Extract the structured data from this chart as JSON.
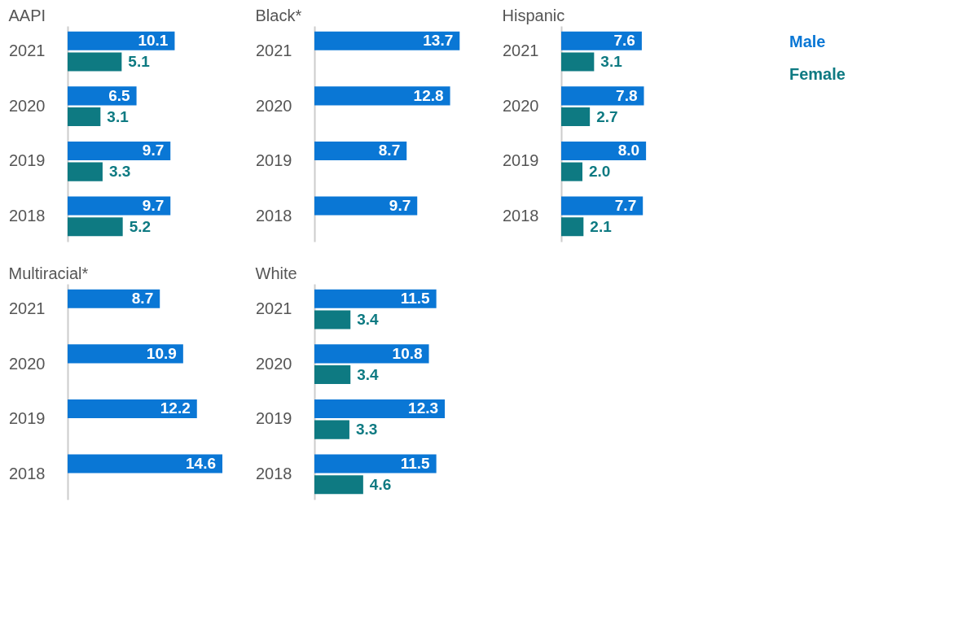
{
  "chart_data": [
    {
      "type": "bar",
      "orientation": "horizontal",
      "title": "AAPI",
      "categories": [
        "2021",
        "2020",
        "2019",
        "2018"
      ],
      "data_labels": true,
      "legend": false,
      "series": [
        {
          "color": "#0a77d5",
          "values": [
            10.1,
            6.5,
            9.7,
            9.7
          ]
        },
        {
          "color": "#0e7a82",
          "values": [
            5.1,
            3.1,
            3.3,
            5.2
          ]
        }
      ]
    },
    {
      "type": "bar",
      "orientation": "horizontal",
      "title": "Black*",
      "categories": [
        "2021",
        "2020",
        "2019",
        "2018"
      ],
      "data_labels": true,
      "legend": false,
      "series": [
        {
          "color": "#0a77d5",
          "values": [
            13.7,
            12.8,
            8.7,
            9.7
          ]
        }
      ]
    },
    {
      "type": "bar",
      "orientation": "horizontal",
      "title": "Hispanic",
      "categories": [
        "2021",
        "2020",
        "2019",
        "2018"
      ],
      "legend": "top right",
      "series": [
        {
          "name": "Male",
          "color": "#0a77d5",
          "values": [
            7.6,
            7.8,
            8.0,
            7.7
          ],
          "value_labels": [
            "7.6",
            "7.8",
            "8.0",
            "7.7"
          ]
        },
        {
          "name": "Female",
          "color": "#0e7a82",
          "values": [
            3.1,
            2.7,
            2.0,
            2.1
          ],
          "value_labels": [
            "3.1",
            "2.7",
            "2.0",
            "2.1"
          ]
        }
      ]
    },
    {
      "type": "bar",
      "orientation": "horizontal",
      "title": "Multiracial*",
      "categories": [
        "2021",
        "2020",
        "2019",
        "2018"
      ],
      "data_labels": true,
      "legend": false,
      "series": [
        {
          "color": "#0a77d5",
          "values": [
            8.7,
            10.9,
            12.2,
            14.6
          ]
        }
      ]
    },
    {
      "type": "bar",
      "orientation": "horizontal",
      "title": "White",
      "categories": [
        "2021",
        "2020",
        "2019",
        "2018"
      ],
      "data_labels": true,
      "legend": false,
      "series": [
        {
          "color": "#0a77d5",
          "values": [
            11.5,
            10.8,
            12.3,
            11.5
          ]
        },
        {
          "color": "#0e7a82",
          "values": [
            3.4,
            3.4,
            3.3,
            4.6
          ]
        }
      ]
    }
  ]
}
